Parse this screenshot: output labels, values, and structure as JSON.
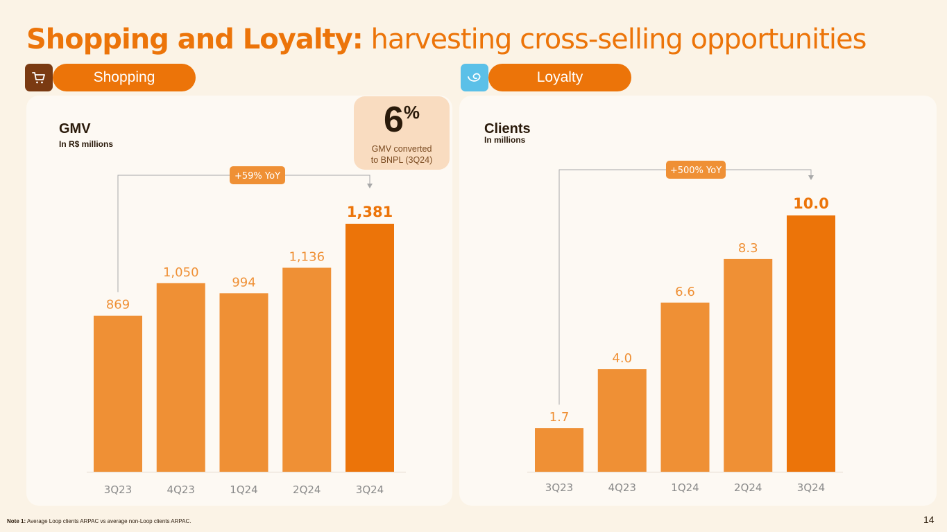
{
  "header": {
    "title_bold": "Shopping and Loyalty:",
    "title_rest": " harvesting cross-selling opportunities"
  },
  "sections": {
    "shopping": {
      "label": "Shopping",
      "icon": "shopping-cart-icon",
      "icon_bg": "#7a3a12"
    },
    "loyalty": {
      "label": "Loyalty",
      "icon": "loyalty-wave-icon",
      "icon_bg": "#5bc0e8"
    }
  },
  "callout": {
    "value": "6",
    "unit": "%",
    "line1": "GMV converted",
    "line2": "to BNPL (3Q24)"
  },
  "colors": {
    "accent": "#ec7409",
    "bar": "#ef9035",
    "bar_highlight": "#ec7409",
    "tick": "#8a8a8a"
  },
  "chart_data": [
    {
      "type": "bar",
      "title": "GMV",
      "subtitle": "In R$ millions",
      "categories": [
        "3Q23",
        "4Q23",
        "1Q24",
        "2Q24",
        "3Q24"
      ],
      "values": [
        869,
        1050,
        994,
        1136,
        1381
      ],
      "value_labels": [
        "869",
        "1,050",
        "994",
        "1,136",
        "1,381"
      ],
      "ylim": [
        0,
        1381
      ],
      "highlight_index": 4,
      "annotation": "+59% YoY",
      "annotation_from": 0,
      "annotation_to": 4
    },
    {
      "type": "bar",
      "title": "Clients",
      "subtitle": "In millions",
      "categories": [
        "3Q23",
        "4Q23",
        "1Q24",
        "2Q24",
        "3Q24"
      ],
      "values": [
        1.7,
        4.0,
        6.6,
        8.3,
        10.0
      ],
      "value_labels": [
        "1.7",
        "4.0",
        "6.6",
        "8.3",
        "10.0"
      ],
      "ylim": [
        0,
        10.0
      ],
      "highlight_index": 4,
      "annotation": "+500% YoY",
      "annotation_from": 0,
      "annotation_to": 4
    }
  ],
  "footer": {
    "note_label": "Note 1:",
    "note_text": " Average Loop clients ARPAC vs average non-Loop clients ARPAC.",
    "page_number": "14"
  }
}
